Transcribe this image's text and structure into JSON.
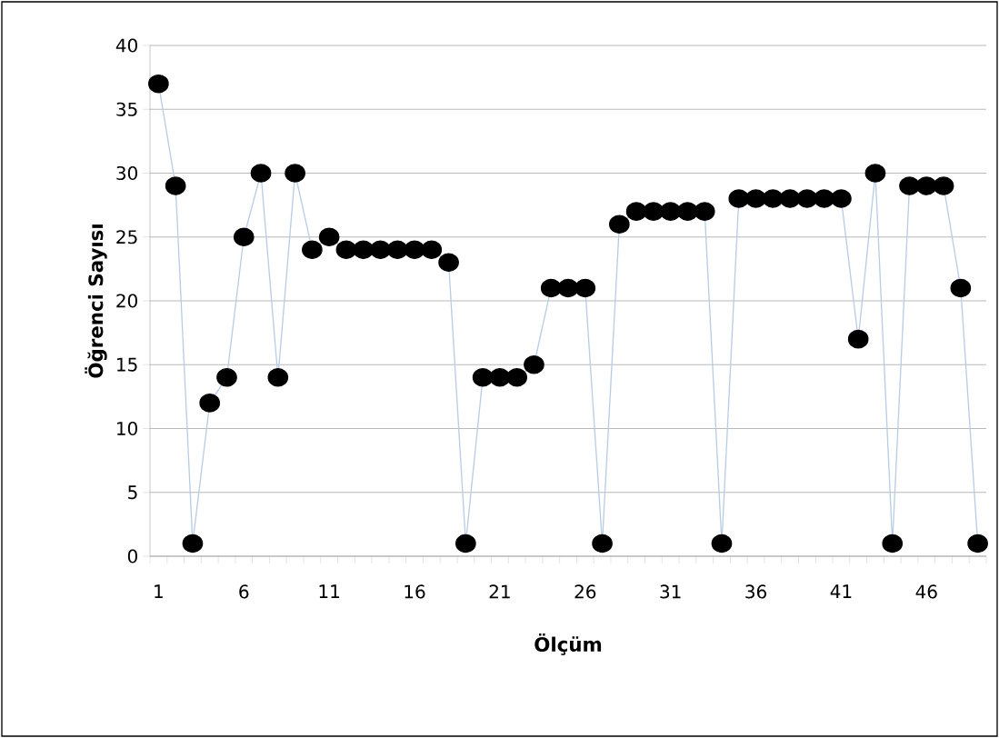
{
  "chart_data": {
    "type": "line",
    "xlabel": "Ölçüm",
    "ylabel": "Öğrenci Sayısı",
    "categories": [
      "1",
      null,
      null,
      null,
      null,
      "6",
      null,
      null,
      null,
      null,
      "11",
      null,
      null,
      null,
      null,
      "16",
      null,
      null,
      null,
      null,
      "21",
      null,
      null,
      null,
      null,
      "26",
      null,
      null,
      null,
      null,
      "31",
      null,
      null,
      null,
      null,
      "36",
      null,
      null,
      null,
      null,
      "41",
      null,
      null,
      null,
      null,
      "46",
      null,
      null,
      null
    ],
    "series": [
      {
        "color": "#b9cde5",
        "values": [
          37,
          29,
          1,
          12,
          14,
          25,
          30,
          14,
          30,
          24,
          25,
          24,
          24,
          24,
          24,
          24,
          24,
          23,
          1,
          14,
          14,
          14,
          15,
          21,
          21,
          21,
          1,
          26,
          27,
          27,
          27,
          27,
          27,
          1,
          28,
          28,
          28,
          28,
          28,
          28,
          28,
          17,
          30,
          1,
          29,
          29,
          29,
          21,
          1
        ]
      }
    ],
    "ylim": [
      0,
      40
    ],
    "yticks": [
      0,
      5,
      10,
      15,
      20,
      25,
      30,
      35,
      40
    ],
    "grid": "y",
    "marker": "circle",
    "line_style": "solid"
  }
}
